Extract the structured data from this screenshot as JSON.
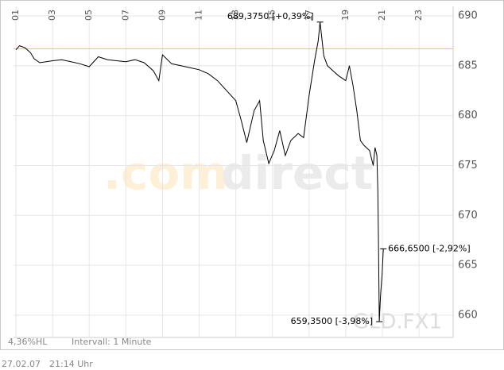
{
  "chart_data": {
    "type": "line",
    "x": [
      1.0,
      1.2,
      1.5,
      1.8,
      2.0,
      2.3,
      3.0,
      3.5,
      4.0,
      4.5,
      5.0,
      5.5,
      6.0,
      6.5,
      7.0,
      7.5,
      8.0,
      8.5,
      8.8,
      9.0,
      9.5,
      10.0,
      10.5,
      11.0,
      11.5,
      12.0,
      12.5,
      13.0,
      13.3,
      13.6,
      14.0,
      14.3,
      14.5,
      14.8,
      15.1,
      15.4,
      15.7,
      16.0,
      16.4,
      16.7,
      17.0,
      17.3,
      17.5,
      17.6,
      17.8,
      18.0,
      18.3,
      18.6,
      19.0,
      19.2,
      19.4,
      19.6,
      19.8,
      20.0,
      20.3,
      20.5,
      20.6,
      20.7,
      20.75,
      20.78,
      20.8,
      20.83,
      20.9,
      20.98,
      21.05
    ],
    "values": [
      686.6,
      687.0,
      686.8,
      686.3,
      685.7,
      685.3,
      685.5,
      685.6,
      685.4,
      685.2,
      684.9,
      685.9,
      685.6,
      685.5,
      685.4,
      685.6,
      685.3,
      684.5,
      683.5,
      686.1,
      685.2,
      685.0,
      684.8,
      684.6,
      684.2,
      683.5,
      682.5,
      681.5,
      679.5,
      677.3,
      680.5,
      681.5,
      677.5,
      675.2,
      676.5,
      678.5,
      676.0,
      677.5,
      678.2,
      677.8,
      682.0,
      685.5,
      687.5,
      689.375,
      686.0,
      685.0,
      684.5,
      684.0,
      683.5,
      685.0,
      683.0,
      680.5,
      677.5,
      677.0,
      676.5,
      675.0,
      676.8,
      676.0,
      672.5,
      668.0,
      665.0,
      659.35,
      662.0,
      664.0,
      666.65
    ],
    "color": "#000000",
    "reference_line": 686.7,
    "reference_color": "#e8c840",
    "xlim": [
      0.87,
      24.86
    ],
    "xticks": [
      {
        "value": 1,
        "label": "01"
      },
      {
        "value": 3,
        "label": "03"
      },
      {
        "value": 5,
        "label": "05"
      },
      {
        "value": 7,
        "label": "07"
      },
      {
        "value": 9,
        "label": "09"
      },
      {
        "value": 11,
        "label": "11"
      },
      {
        "value": 13,
        "label": "13"
      },
      {
        "value": 15,
        "label": "15"
      },
      {
        "value": 17,
        "label": "17"
      },
      {
        "value": 19,
        "label": "19"
      },
      {
        "value": 21,
        "label": "21"
      },
      {
        "value": 23,
        "label": "23"
      }
    ],
    "ylim": [
      657.77,
      690.95
    ],
    "yticks": [
      660,
      665,
      670,
      675,
      680,
      685,
      690
    ],
    "grid": true,
    "annotations": [
      {
        "value": 689.375,
        "label": "689,3750 [+0,39%]",
        "side": "above-left"
      },
      {
        "value": 659.35,
        "label": "659,3500 [-3,98%]",
        "side": "left"
      },
      {
        "value": 666.65,
        "label": "666,6500 [-2,92%]",
        "side": "right"
      }
    ],
    "watermark": [
      ".com",
      "direct"
    ],
    "symbol": "GLD.FX1",
    "range_label": "4,36%HL",
    "interval_label": "Intervall: 1 Minute",
    "date": "27.02.07",
    "time": "21:14 Uhr"
  }
}
